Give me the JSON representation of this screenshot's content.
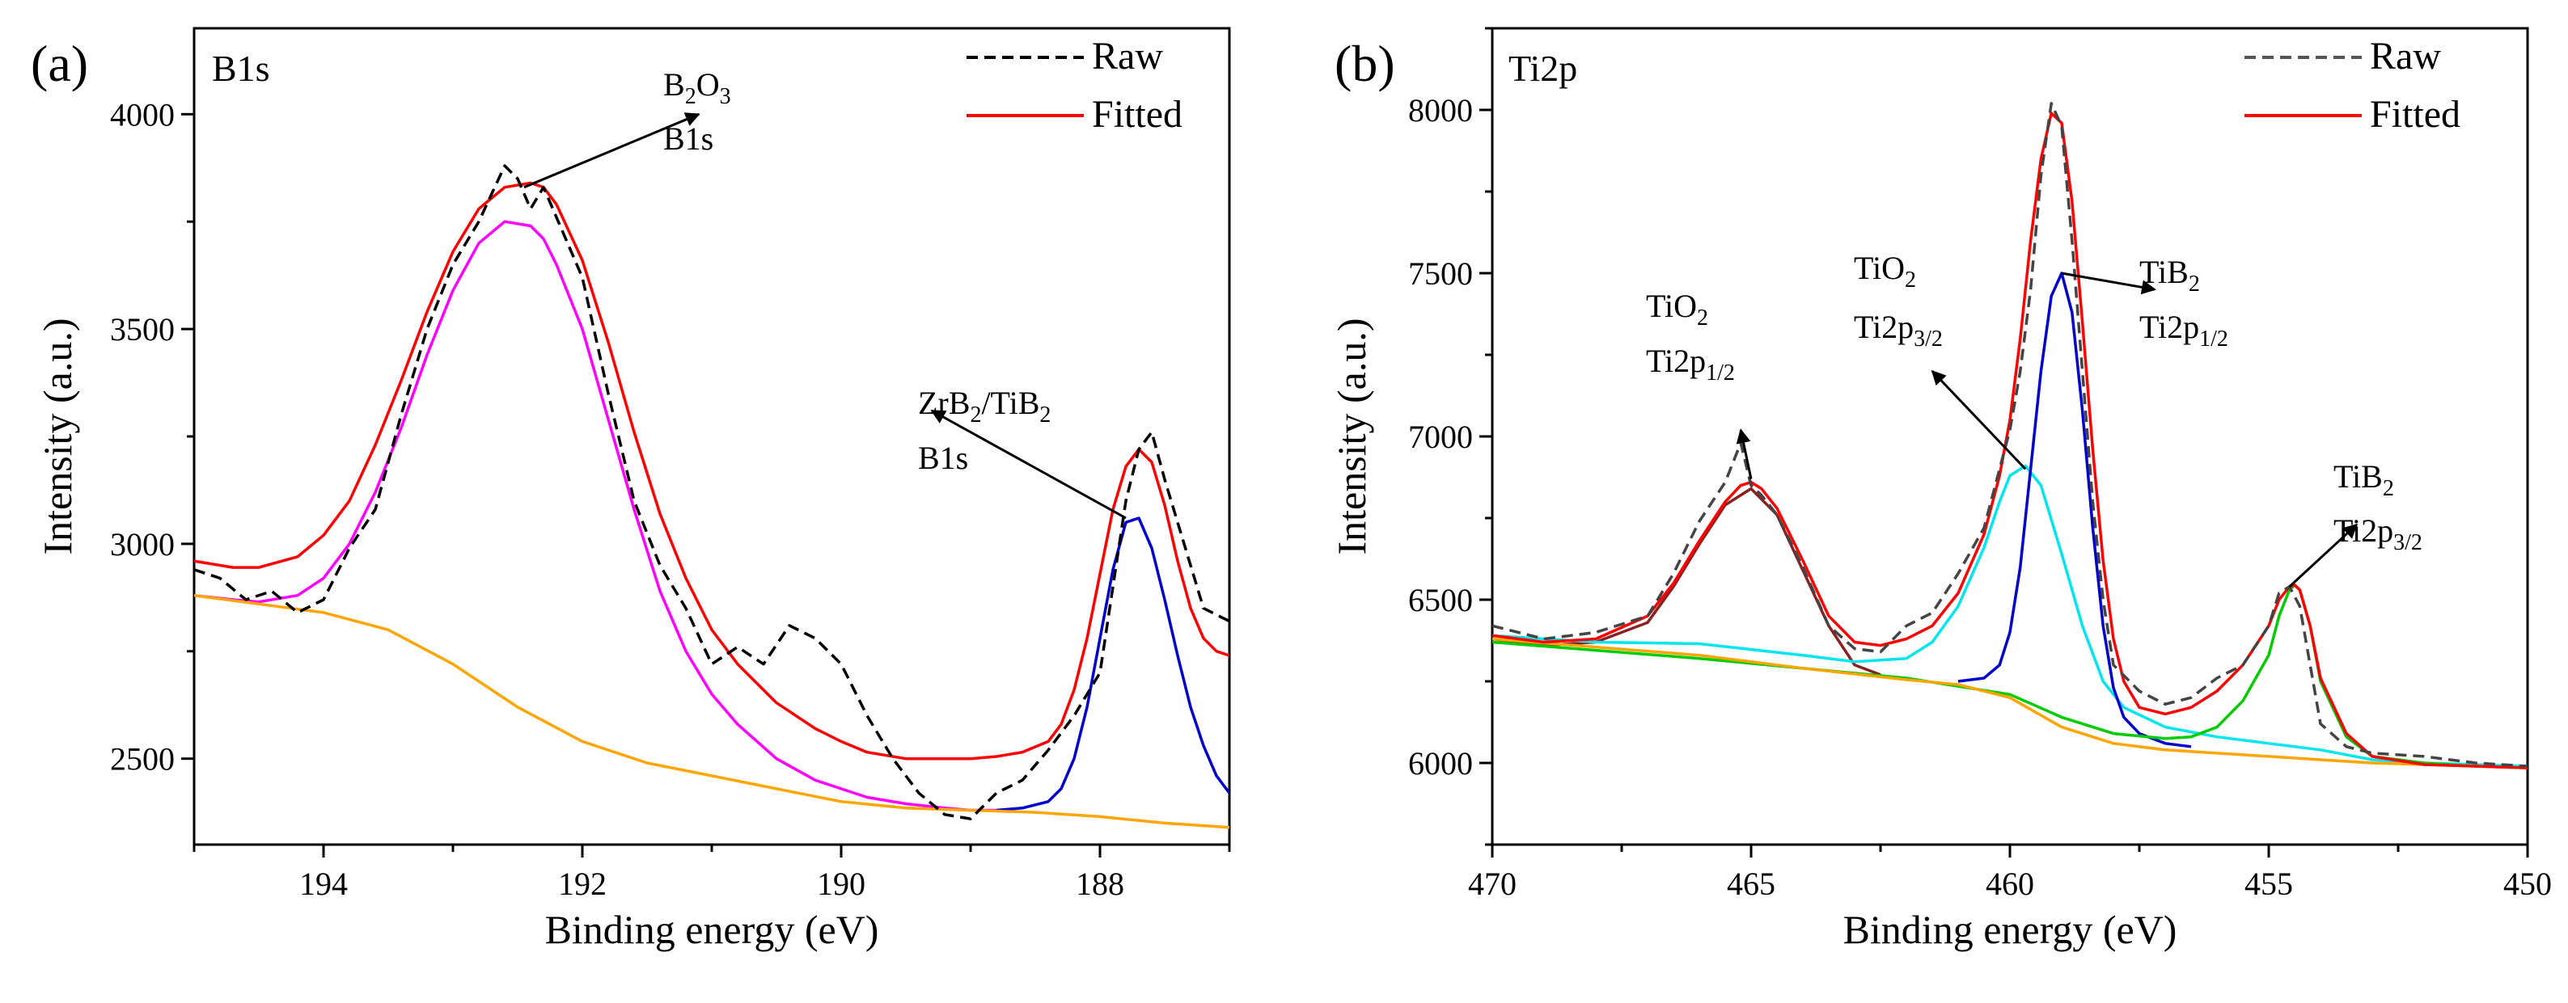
{
  "chart_data": [
    {
      "type": "line",
      "panel_label": "(a)",
      "title": "B1s",
      "xlabel": "Binding energy (eV)",
      "ylabel": "Intensity (a.u.)",
      "xlim": [
        195,
        187
      ],
      "ylim": [
        2300,
        4200
      ],
      "xticks": [
        194,
        192,
        190,
        188
      ],
      "yticks": [
        2500,
        3000,
        3500,
        4000
      ],
      "legend": [
        {
          "label": "Raw",
          "color": "#000000",
          "style": "dashed"
        },
        {
          "label": "Fitted",
          "color": "#ff0000",
          "style": "solid"
        }
      ],
      "annotations": [
        {
          "lines": [
            [
              "B",
              "2",
              "O",
              "3"
            ],
            [
              "B1s"
            ]
          ],
          "arrow_from": [
            192.45,
            3830
          ],
          "arrow_to": [
            191.1,
            4000
          ]
        },
        {
          "lines": [
            [
              "ZrB",
              "2",
              "/TiB",
              "2"
            ],
            [
              "B1s"
            ]
          ],
          "arrow_from": [
            187.8,
            3060
          ],
          "arrow_to": [
            189.3,
            3310
          ]
        }
      ],
      "series": [
        {
          "name": "Raw",
          "color": "#000000",
          "style": "dashed",
          "x": [
            195,
            194.8,
            194.6,
            194.4,
            194.2,
            194,
            193.8,
            193.6,
            193.4,
            193.2,
            193,
            192.8,
            192.6,
            192.5,
            192.4,
            192.3,
            192.2,
            192,
            191.8,
            191.6,
            191.4,
            191.2,
            191,
            190.8,
            190.6,
            190.4,
            190.2,
            190,
            189.8,
            189.6,
            189.4,
            189.2,
            189,
            188.8,
            188.6,
            188.4,
            188.2,
            188,
            187.9,
            187.8,
            187.7,
            187.6,
            187.5,
            187.3,
            187.2,
            187
          ],
          "y": [
            2940,
            2920,
            2870,
            2890,
            2840,
            2870,
            2990,
            3080,
            3300,
            3500,
            3650,
            3750,
            3880,
            3850,
            3780,
            3830,
            3760,
            3620,
            3350,
            3100,
            2950,
            2850,
            2720,
            2760,
            2720,
            2810,
            2780,
            2720,
            2600,
            2500,
            2420,
            2370,
            2360,
            2420,
            2450,
            2520,
            2600,
            2700,
            2900,
            3100,
            3220,
            3260,
            3150,
            2950,
            2850,
            2820
          ]
        },
        {
          "name": "Fitted",
          "color": "#ff0000",
          "style": "solid",
          "x": [
            195,
            194.7,
            194.5,
            194.2,
            194,
            193.8,
            193.6,
            193.4,
            193.2,
            193,
            192.8,
            192.6,
            192.4,
            192.3,
            192.2,
            192,
            191.8,
            191.6,
            191.4,
            191.2,
            191,
            190.8,
            190.5,
            190.2,
            190,
            189.8,
            189.5,
            189.2,
            189,
            188.8,
            188.6,
            188.4,
            188.3,
            188.2,
            188.1,
            188,
            187.9,
            187.8,
            187.7,
            187.6,
            187.5,
            187.4,
            187.3,
            187.2,
            187.1,
            187
          ],
          "y": [
            2960,
            2945,
            2945,
            2970,
            3020,
            3100,
            3230,
            3380,
            3540,
            3680,
            3780,
            3830,
            3840,
            3830,
            3790,
            3660,
            3470,
            3260,
            3070,
            2920,
            2800,
            2720,
            2630,
            2570,
            2540,
            2515,
            2500,
            2500,
            2500,
            2505,
            2515,
            2540,
            2580,
            2660,
            2780,
            2930,
            3080,
            3180,
            3220,
            3190,
            3090,
            2960,
            2850,
            2780,
            2750,
            2740
          ]
        },
        {
          "name": "B2O3 component",
          "color": "#ff00ff",
          "style": "solid",
          "x": [
            195,
            194.7,
            194.5,
            194.2,
            194,
            193.8,
            193.6,
            193.4,
            193.2,
            193,
            192.8,
            192.6,
            192.4,
            192.3,
            192.2,
            192,
            191.8,
            191.6,
            191.4,
            191.2,
            191,
            190.8,
            190.5,
            190.2,
            190,
            189.8,
            189.5,
            189.2,
            189,
            188.8
          ],
          "y": [
            2880,
            2870,
            2865,
            2880,
            2920,
            3000,
            3120,
            3270,
            3440,
            3590,
            3700,
            3750,
            3740,
            3710,
            3650,
            3500,
            3290,
            3080,
            2890,
            2750,
            2650,
            2580,
            2500,
            2450,
            2430,
            2410,
            2395,
            2385,
            2380,
            2380
          ]
        },
        {
          "name": "ZrB2/TiB2 component",
          "color": "#0000cc",
          "style": "solid",
          "x": [
            188.8,
            188.6,
            188.4,
            188.3,
            188.2,
            188.1,
            188,
            187.9,
            187.8,
            187.7,
            187.6,
            187.5,
            187.4,
            187.3,
            187.2,
            187.1,
            187
          ],
          "y": [
            2380,
            2385,
            2400,
            2430,
            2500,
            2620,
            2780,
            2940,
            3050,
            3060,
            2990,
            2870,
            2740,
            2620,
            2530,
            2460,
            2420
          ]
        },
        {
          "name": "Background",
          "color": "#ffa500",
          "style": "solid",
          "x": [
            195,
            194.5,
            194,
            193.5,
            193,
            192.5,
            192,
            191.5,
            191,
            190.5,
            190,
            189.5,
            189,
            188.5,
            188,
            187.5,
            187
          ],
          "y": [
            2880,
            2860,
            2840,
            2800,
            2720,
            2620,
            2540,
            2490,
            2460,
            2430,
            2400,
            2385,
            2380,
            2375,
            2365,
            2350,
            2340
          ]
        }
      ]
    },
    {
      "type": "line",
      "panel_label": "(b)",
      "title": "Ti2p",
      "xlabel": "Binding energy (eV)",
      "ylabel": "Intensity (a.u.)",
      "xlim": [
        470,
        450
      ],
      "ylim": [
        5750,
        8250
      ],
      "xticks": [
        470,
        465,
        460,
        455,
        450
      ],
      "yticks": [
        6000,
        6500,
        7000,
        7500,
        8000
      ],
      "legend": [
        {
          "label": "Raw",
          "color": "#555555",
          "style": "dashed"
        },
        {
          "label": "Fitted",
          "color": "#ff0000",
          "style": "solid"
        }
      ],
      "annotations": [
        {
          "lines": [
            [
              "TiO",
              "2"
            ],
            [
              "Ti2p",
              "1/2"
            ]
          ],
          "arrow_from": [
            465,
            6870
          ],
          "arrow_to": [
            465.2,
            7020
          ]
        },
        {
          "lines": [
            [
              "TiO",
              "2"
            ],
            [
              "Ti2p",
              "3/2"
            ]
          ],
          "arrow_from": [
            459.7,
            6900
          ],
          "arrow_to": [
            461.5,
            7200
          ]
        },
        {
          "lines": [
            [
              "TiB",
              "2"
            ],
            [
              "Ti2p",
              "1/2"
            ]
          ],
          "arrow_from": [
            459,
            7500
          ],
          "arrow_to": [
            457.2,
            7450
          ]
        },
        {
          "lines": [
            [
              "TiB",
              "2"
            ],
            [
              "Ti2p",
              "3/2"
            ]
          ],
          "arrow_from": [
            454.6,
            6540
          ],
          "arrow_to": [
            453.3,
            6730
          ]
        }
      ],
      "series": [
        {
          "name": "Raw",
          "color": "#444444",
          "style": "dashed",
          "x": [
            470,
            469,
            468,
            467,
            466.5,
            466,
            465.5,
            465.2,
            465,
            464.8,
            464.5,
            464,
            463.5,
            463,
            462.5,
            462,
            461.5,
            461,
            460.5,
            460,
            459.8,
            459.6,
            459.4,
            459.2,
            459,
            458.8,
            458.6,
            458.4,
            458.2,
            458,
            457.5,
            457,
            456.5,
            456,
            455.5,
            455,
            454.8,
            454.6,
            454.4,
            454.2,
            454,
            453.5,
            453,
            452,
            451,
            450
          ],
          "y": [
            6420,
            6380,
            6400,
            6450,
            6580,
            6740,
            6860,
            6980,
            6850,
            6820,
            6760,
            6600,
            6420,
            6350,
            6340,
            6420,
            6460,
            6580,
            6720,
            7020,
            7200,
            7450,
            7800,
            8020,
            7950,
            7600,
            7200,
            6800,
            6500,
            6300,
            6220,
            6180,
            6200,
            6260,
            6300,
            6420,
            6520,
            6540,
            6480,
            6300,
            6120,
            6050,
            6030,
            6020,
            6000,
            5990
          ]
        },
        {
          "name": "Fitted",
          "color": "#ff0000",
          "style": "solid",
          "x": [
            470,
            469,
            468,
            467,
            466.5,
            466,
            465.5,
            465.2,
            465,
            464.8,
            464.5,
            464,
            463.5,
            463,
            462.5,
            462,
            461.5,
            461,
            460.5,
            460.2,
            460,
            459.8,
            459.6,
            459.4,
            459.2,
            459,
            458.8,
            458.6,
            458.4,
            458.2,
            458,
            457.8,
            457.5,
            457,
            456.5,
            456,
            455.5,
            455,
            454.8,
            454.6,
            454.5,
            454.4,
            454.2,
            454,
            453.5,
            453,
            452,
            451,
            450
          ],
          "y": [
            6390,
            6370,
            6380,
            6450,
            6550,
            6680,
            6800,
            6850,
            6860,
            6840,
            6780,
            6620,
            6450,
            6370,
            6360,
            6380,
            6420,
            6520,
            6700,
            6880,
            7050,
            7300,
            7600,
            7850,
            7990,
            7960,
            7720,
            7350,
            6960,
            6620,
            6380,
            6250,
            6170,
            6150,
            6170,
            6220,
            6300,
            6420,
            6500,
            6540,
            6545,
            6530,
            6420,
            6260,
            6090,
            6020,
            5995,
            5990,
            5985
          ]
        },
        {
          "name": "TiO2 Ti2p1/2 component",
          "color": "#8b2020",
          "style": "solid",
          "x": [
            470,
            469,
            468,
            467,
            466.5,
            466,
            465.5,
            465,
            464.5,
            464,
            463.5,
            463,
            462.5
          ],
          "y": [
            6380,
            6360,
            6370,
            6430,
            6540,
            6670,
            6790,
            6840,
            6760,
            6590,
            6420,
            6300,
            6270
          ]
        },
        {
          "name": "TiO2 Ti2p3/2 component",
          "color": "#00e5ee",
          "style": "solid",
          "x": [
            470,
            468,
            466,
            464,
            463,
            462,
            461.5,
            461,
            460.5,
            460.2,
            460,
            459.7,
            459.4,
            459,
            458.6,
            458.2,
            457.8,
            457,
            456,
            455,
            454,
            453,
            452,
            451,
            450
          ],
          "y": [
            6390,
            6370,
            6365,
            6330,
            6310,
            6320,
            6370,
            6480,
            6660,
            6800,
            6880,
            6910,
            6850,
            6640,
            6420,
            6250,
            6170,
            6110,
            6080,
            6060,
            6040,
            6010,
            6000,
            5995,
            5990
          ]
        },
        {
          "name": "TiB2 Ti2p1/2 component",
          "color": "#0000cc",
          "style": "solid",
          "x": [
            461,
            460.5,
            460.2,
            460,
            459.8,
            459.6,
            459.4,
            459.2,
            459,
            458.8,
            458.6,
            458.4,
            458.2,
            458,
            457.8,
            457.5,
            457,
            456.5
          ],
          "y": [
            6250,
            6260,
            6300,
            6400,
            6600,
            6900,
            7200,
            7430,
            7500,
            7380,
            7080,
            6720,
            6420,
            6230,
            6140,
            6090,
            6060,
            6050
          ]
        },
        {
          "name": "TiB2 Ti2p3/2 component",
          "color": "#00cc00",
          "style": "solid",
          "x": [
            470,
            466,
            462,
            460,
            459,
            458,
            457,
            456.5,
            456,
            455.5,
            455,
            454.8,
            454.6,
            454.5,
            454.4,
            454.2,
            454,
            453.5,
            453,
            452,
            451,
            450
          ],
          "y": [
            6370,
            6320,
            6260,
            6210,
            6140,
            6090,
            6075,
            6080,
            6110,
            6190,
            6330,
            6450,
            6530,
            6545,
            6530,
            6420,
            6250,
            6080,
            6020,
            6000,
            5990,
            5985
          ]
        },
        {
          "name": "Background",
          "color": "#ffa500",
          "style": "solid",
          "x": [
            470,
            468,
            466,
            464,
            462,
            461,
            460,
            459,
            458,
            457,
            456,
            455,
            454,
            453,
            452,
            450
          ],
          "y": [
            6380,
            6355,
            6330,
            6290,
            6255,
            6240,
            6200,
            6110,
            6060,
            6040,
            6030,
            6020,
            6010,
            6000,
            5995,
            5985
          ]
        }
      ]
    }
  ]
}
